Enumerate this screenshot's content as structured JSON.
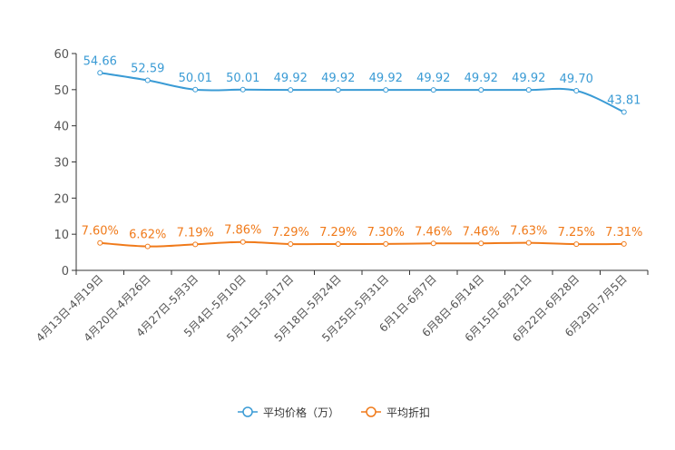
{
  "chart_data": {
    "type": "line",
    "title": "",
    "xlabel": "",
    "ylabel": "",
    "ylim": [
      0,
      60
    ],
    "yticks": [
      0,
      10,
      20,
      30,
      40,
      50,
      60
    ],
    "categories": [
      "4月13日-4月19日",
      "4月20日-4月26日",
      "4月27日-5月3日",
      "5月4日-5月10日",
      "5月11日-5月17日",
      "5月18日-5月24日",
      "5月25日-5月31日",
      "6月1日-6月7日",
      "6月8日-6月14日",
      "6月15日-6月21日",
      "6月22日-6月28日",
      "6月29日-7月5日"
    ],
    "series": [
      {
        "name": "平均价格（万）",
        "color": "#3a9bd5",
        "values": [
          54.66,
          52.59,
          50.01,
          50.01,
          49.92,
          49.92,
          49.92,
          49.92,
          49.92,
          49.92,
          49.7,
          43.81
        ],
        "labels": [
          "54.66",
          "52.59",
          "50.01",
          "50.01",
          "49.92",
          "49.92",
          "49.92",
          "49.92",
          "49.92",
          "49.92",
          "49.70",
          "43.81"
        ]
      },
      {
        "name": "平均折扣",
        "color": "#f07a1a",
        "values": [
          7.6,
          6.62,
          7.19,
          7.86,
          7.29,
          7.29,
          7.3,
          7.46,
          7.46,
          7.63,
          7.25,
          7.31
        ],
        "labels": [
          "7.60%",
          "6.62%",
          "7.19%",
          "7.86%",
          "7.29%",
          "7.29%",
          "7.30%",
          "7.46%",
          "7.46%",
          "7.63%",
          "7.25%",
          "7.31%"
        ]
      }
    ],
    "legend_position": "bottom-center",
    "grid": false
  }
}
